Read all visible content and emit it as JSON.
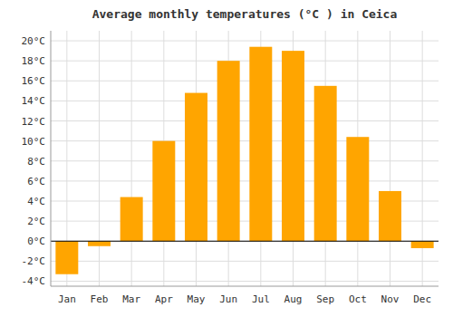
{
  "chart_data": {
    "type": "bar",
    "title": "Average monthly temperatures (°C ) in Ceica",
    "categories": [
      "Jan",
      "Feb",
      "Mar",
      "Apr",
      "May",
      "Jun",
      "Jul",
      "Aug",
      "Sep",
      "Oct",
      "Nov",
      "Dec"
    ],
    "values": [
      -3.3,
      -0.5,
      4.4,
      10.0,
      14.8,
      18.0,
      19.4,
      19.0,
      15.5,
      10.4,
      5.0,
      -0.7
    ],
    "color": "#FFA500",
    "ylim": [
      -4.5,
      21
    ],
    "yticks": [
      {
        "value": -4,
        "label": "-4°C"
      },
      {
        "value": -2,
        "label": "-2°C"
      },
      {
        "value": 0,
        "label": "0°C"
      },
      {
        "value": 2,
        "label": "2°C"
      },
      {
        "value": 4,
        "label": "4°C"
      },
      {
        "value": 6,
        "label": "6°C"
      },
      {
        "value": 8,
        "label": "8°C"
      },
      {
        "value": 10,
        "label": "10°C"
      },
      {
        "value": 12,
        "label": "12°C"
      },
      {
        "value": 14,
        "label": "14°C"
      },
      {
        "value": 16,
        "label": "16°C"
      },
      {
        "value": 18,
        "label": "18°C"
      },
      {
        "value": 20,
        "label": "20°C"
      }
    ],
    "grid": true
  }
}
